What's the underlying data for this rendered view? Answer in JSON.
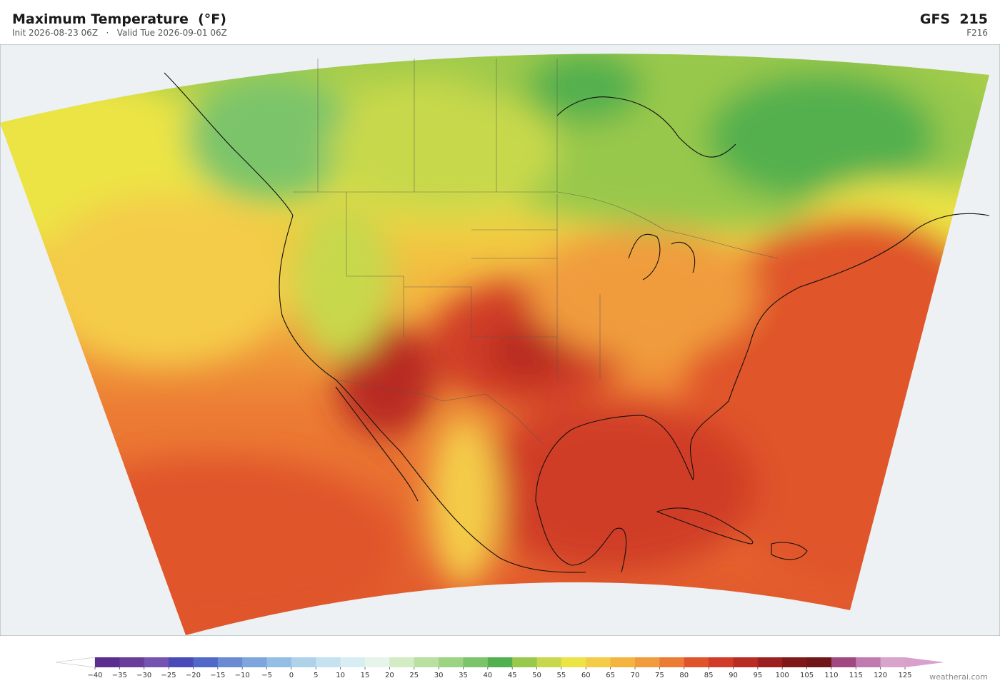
{
  "header": {
    "title": "Maximum Temperature  (°F)",
    "subtitle": "Init 2026-08-23 06Z   ·   Valid Tue 2026-09-01 06Z",
    "model": "GFS  215",
    "forecast_hour": "F216"
  },
  "colorbar": {
    "ticks": [
      {
        "value": -40,
        "label": "−40"
      },
      {
        "value": -35,
        "label": "−35"
      },
      {
        "value": -30,
        "label": "−30"
      },
      {
        "value": -25,
        "label": "−25"
      },
      {
        "value": -20,
        "label": "−20"
      },
      {
        "value": -15,
        "label": "−15"
      },
      {
        "value": -10,
        "label": "−10"
      },
      {
        "value": -5,
        "label": "−5"
      },
      0,
      5,
      10,
      15,
      20,
      25,
      30,
      35,
      40,
      45,
      50,
      55,
      60,
      65,
      70,
      75,
      80,
      85,
      90,
      95,
      100,
      105,
      110,
      115,
      120,
      125
    ],
    "colors": [
      "#5b2d8e",
      "#6a3d9a",
      "#7553b0",
      "#4a4ab8",
      "#5068c8",
      "#6a8ad4",
      "#7ea6dc",
      "#94bfe4",
      "#aed2ea",
      "#c4e2f0",
      "#d8eef4",
      "#e6f4ec",
      "#d4ecc4",
      "#b8e0a0",
      "#9cd484",
      "#7cc46a",
      "#52b04e",
      "#98c84c",
      "#c8d84c",
      "#ece444",
      "#f4cc48",
      "#f4b440",
      "#f09c3c",
      "#ec7c34",
      "#e0542c",
      "#d03c28",
      "#b82c24",
      "#9c2020",
      "#801818",
      "#701818",
      "#a04880",
      "#c07cb0",
      "#d8a4cc"
    ],
    "under_color": "#ffffff",
    "over_color": "#d8a0cc"
  },
  "credit": "weatherai.com"
}
